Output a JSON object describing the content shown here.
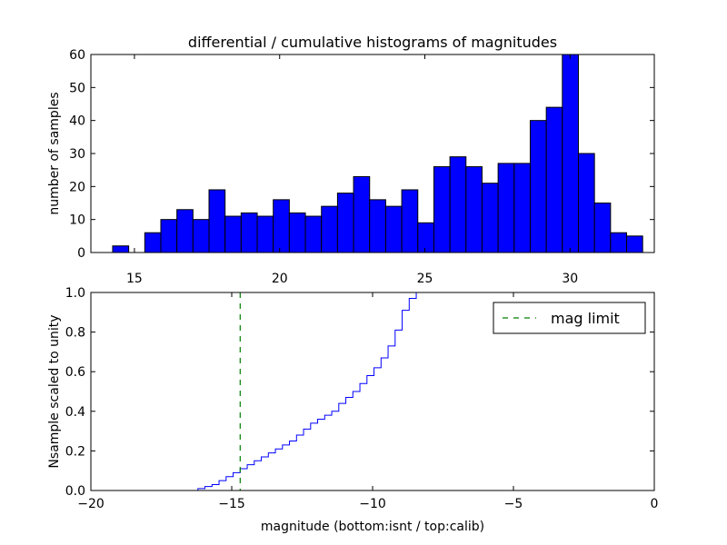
{
  "colors": {
    "bar_fill": "#0000ff",
    "bar_edge": "#000000",
    "step_line": "#0000ff",
    "mag_limit_line": "#008000",
    "background": "#ffffff"
  },
  "chart_data": [
    {
      "type": "bar",
      "title": "differential / cumulative histograms of magnitudes",
      "xlabel": "",
      "ylabel": "number of samples",
      "xlim": [
        13.5,
        32.9
      ],
      "ylim": [
        0,
        60
      ],
      "xticks": [
        15,
        20,
        25,
        30
      ],
      "yticks": [
        0,
        10,
        20,
        30,
        40,
        50,
        60
      ],
      "x_axis_position": "top-ticks-labelled-below-plot",
      "bin_width": 0.553,
      "bin_edges_start": [
        14.25,
        14.803,
        15.356,
        15.909,
        16.462,
        17.015,
        17.568,
        18.121,
        18.674,
        19.227,
        19.78,
        20.333,
        20.886,
        21.439,
        21.992,
        22.545,
        23.098,
        23.651,
        24.204,
        24.757,
        25.31,
        25.863,
        26.416,
        26.969,
        27.522,
        28.075,
        28.628,
        29.181,
        29.734,
        30.287,
        30.84,
        31.393,
        31.946
      ],
      "values": [
        2,
        0,
        6,
        10,
        13,
        10,
        19,
        11,
        12,
        11,
        16,
        12,
        11,
        14,
        18,
        23,
        16,
        14,
        19,
        9,
        26,
        29,
        26,
        21,
        27,
        27,
        40,
        44,
        60,
        30,
        15,
        6,
        5
      ]
    },
    {
      "type": "line",
      "style": "step",
      "xlabel": "magnitude (bottom:isnt / top:calib)",
      "ylabel": "Nsample scaled to unity",
      "xlim": [
        -20,
        0
      ],
      "ylim": [
        0,
        1.0
      ],
      "xticks": [
        -20,
        -15,
        -10,
        -5,
        0
      ],
      "xtick_labels": [
        "−20",
        "−15",
        "−10",
        "−5",
        "0"
      ],
      "yticks": [
        0.0,
        0.2,
        0.4,
        0.6,
        0.8,
        1.0
      ],
      "ytick_labels": [
        "0.0",
        "0.2",
        "0.4",
        "0.6",
        "0.8",
        "1.0"
      ],
      "series": [
        {
          "name": "cumulative",
          "x": [
            -20,
            -16.5,
            -16.2,
            -15.95,
            -15.7,
            -15.45,
            -15.2,
            -14.95,
            -14.7,
            -14.45,
            -14.2,
            -13.95,
            -13.7,
            -13.45,
            -13.2,
            -12.95,
            -12.7,
            -12.45,
            -12.2,
            -11.95,
            -11.7,
            -11.45,
            -11.2,
            -10.95,
            -10.7,
            -10.45,
            -10.2,
            -9.95,
            -9.7,
            -9.45,
            -9.2,
            -8.95,
            -8.7,
            -8.45
          ],
          "y": [
            0.0,
            0.0,
            0.01,
            0.02,
            0.03,
            0.05,
            0.07,
            0.09,
            0.11,
            0.13,
            0.15,
            0.17,
            0.19,
            0.21,
            0.23,
            0.25,
            0.28,
            0.31,
            0.34,
            0.36,
            0.38,
            0.4,
            0.44,
            0.47,
            0.5,
            0.54,
            0.58,
            0.62,
            0.67,
            0.73,
            0.81,
            0.91,
            0.97,
            1.0
          ]
        }
      ],
      "vline": {
        "name": "mag limit",
        "x": -14.7,
        "style": "dashed"
      },
      "legend": {
        "entries": [
          "mag limit"
        ],
        "placement": "top-right"
      }
    }
  ]
}
